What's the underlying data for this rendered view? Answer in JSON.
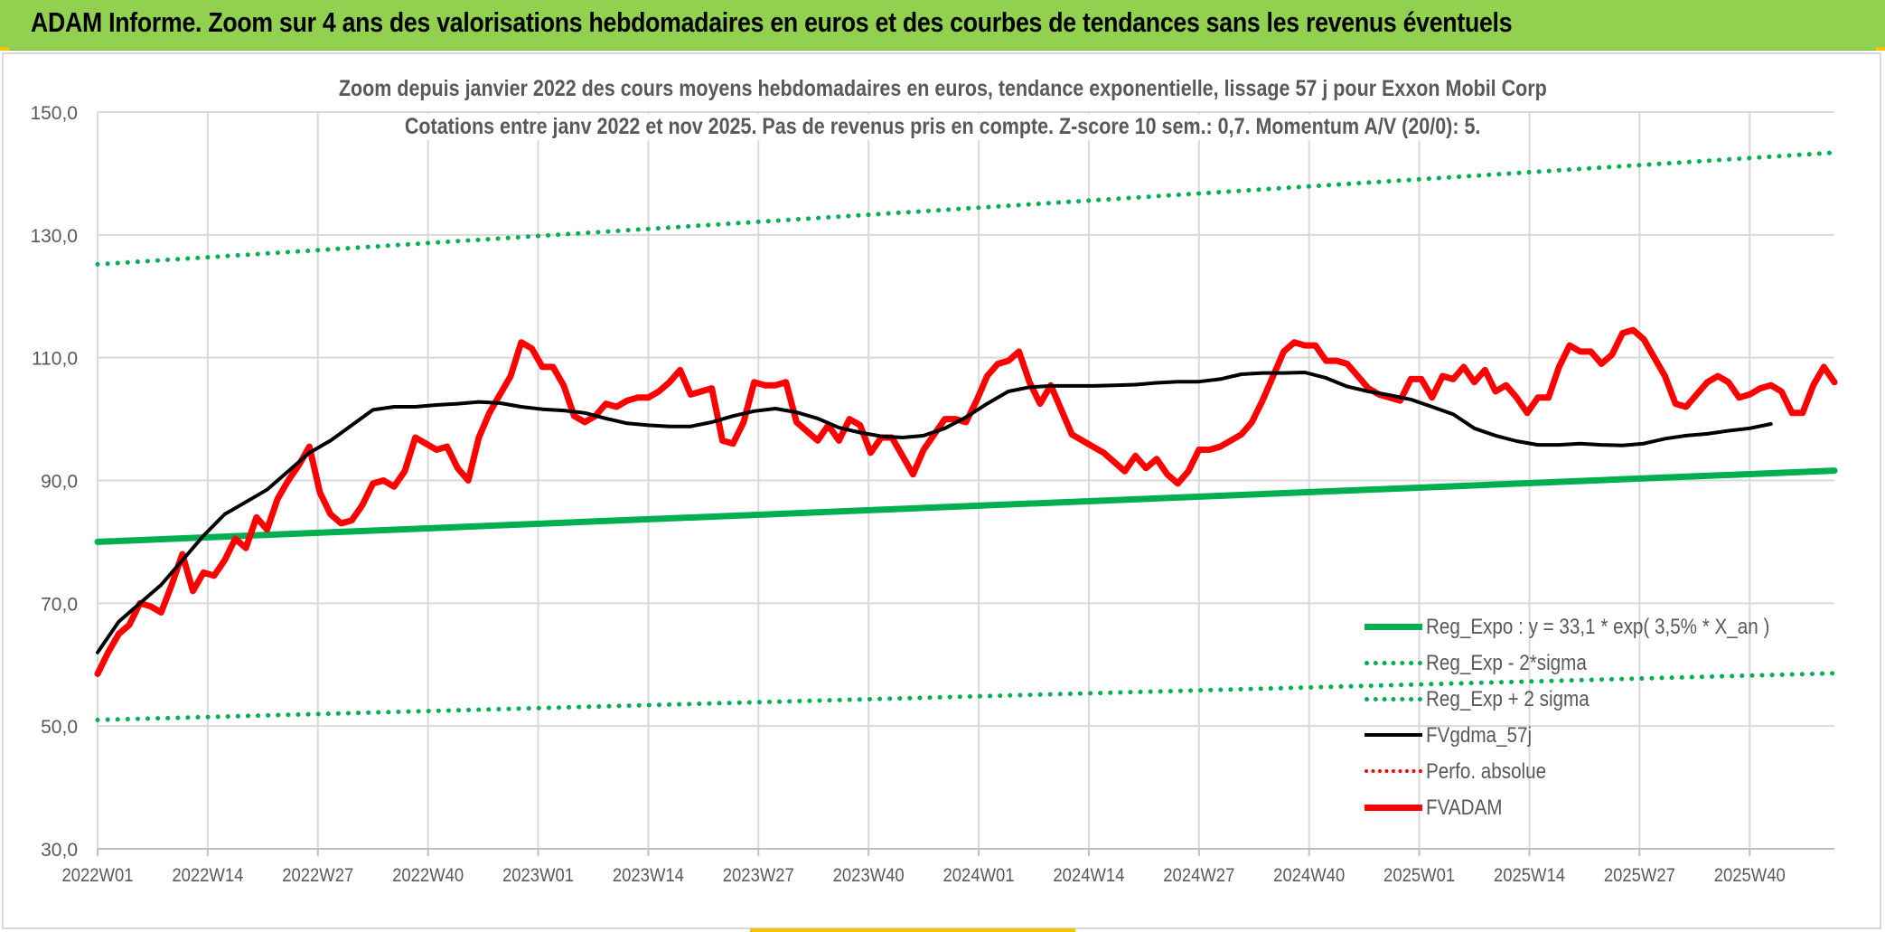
{
  "banner": {
    "title": "ADAM Informe. Zoom sur 4 ans des valorisations hebdomadaires en euros et des courbes de tendances sans les revenus éventuels"
  },
  "colors": {
    "banner_bg": "#92d050",
    "trend_green": "#00b050",
    "smooth_black": "#000000",
    "price_red": "#ff0000",
    "grid": "#d9d9d9",
    "text": "#595959"
  },
  "chart_data": {
    "type": "line",
    "title": "Zoom depuis janvier 2022 des cours moyens hebdomadaires en euros, tendance exponentielle, lissage 57 j pour Exxon Mobil Corp",
    "subtitle": "Cotations entre janv 2022 et nov 2025. Pas de revenus pris en compte. Z-score 10 sem.: 0,7. Momentum A/V (20/0): 5.",
    "y_ticks": [
      "30,0",
      "50,0",
      "70,0",
      "90,0",
      "110,0",
      "130,0",
      "150,0"
    ],
    "ylim": [
      30,
      150
    ],
    "x_ticks": [
      "2022W01",
      "2022W14",
      "2022W27",
      "2022W40",
      "2023W01",
      "2023W14",
      "2023W27",
      "2023W40",
      "2024W01",
      "2024W14",
      "2024W27",
      "2024W40",
      "2025W01",
      "2025W14",
      "2025W27",
      "2025W40"
    ],
    "x_tick_weeks": [
      0,
      13,
      26,
      39,
      52,
      65,
      78,
      91,
      104,
      117,
      130,
      143,
      156,
      169,
      182,
      195
    ],
    "x_range_weeks": [
      0,
      205
    ],
    "grid": true,
    "legend_position": "bottom-right",
    "series": [
      {
        "name": "Reg_Expo : y = 33,1 * exp( 3,5% *  X_an )",
        "style": "solid-thick",
        "color": "#00b050",
        "points": [
          [
            0,
            80.0
          ],
          [
            205,
            91.6
          ]
        ]
      },
      {
        "name": "Reg_Exp - 2*sigma",
        "style": "dotted",
        "color": "#00b050",
        "points": [
          [
            0,
            51.0
          ],
          [
            205,
            58.6
          ]
        ]
      },
      {
        "name": "Reg_Exp + 2 sigma",
        "style": "dotted",
        "color": "#00b050",
        "points": [
          [
            0,
            125.2
          ],
          [
            205,
            143.4
          ]
        ]
      },
      {
        "name": "FVgdma_57j",
        "style": "solid",
        "color": "#000000",
        "points": [
          [
            0,
            62
          ],
          [
            4,
            67
          ],
          [
            8,
            70
          ],
          [
            12,
            73
          ],
          [
            16,
            77
          ],
          [
            20,
            81
          ],
          [
            24,
            84.5
          ],
          [
            28,
            86.5
          ],
          [
            32,
            88.5
          ],
          [
            36,
            91.5
          ],
          [
            40,
            94.5
          ],
          [
            44,
            96.5
          ],
          [
            48,
            99
          ],
          [
            52,
            101.5
          ],
          [
            56,
            102
          ],
          [
            60,
            102
          ],
          [
            64,
            102.3
          ],
          [
            68,
            102.5
          ],
          [
            72,
            102.8
          ],
          [
            76,
            102.6
          ],
          [
            80,
            102
          ],
          [
            84,
            101.6
          ],
          [
            88,
            101.4
          ],
          [
            92,
            101
          ],
          [
            96,
            100.1
          ],
          [
            100,
            99.3
          ],
          [
            104,
            99
          ],
          [
            108,
            98.8
          ],
          [
            112,
            98.8
          ],
          [
            116,
            99.5
          ],
          [
            120,
            100.5
          ],
          [
            124,
            101.3
          ],
          [
            128,
            101.7
          ],
          [
            132,
            101.1
          ],
          [
            136,
            100.1
          ],
          [
            140,
            98.6
          ],
          [
            144,
            97.8
          ],
          [
            148,
            97.2
          ],
          [
            152,
            97
          ],
          [
            156,
            97.3
          ],
          [
            160,
            98.5
          ],
          [
            164,
            100.3
          ],
          [
            168,
            102.5
          ],
          [
            172,
            104.5
          ],
          [
            176,
            105.2
          ],
          [
            180,
            105.4
          ],
          [
            184,
            105.4
          ],
          [
            188,
            105.4
          ],
          [
            192,
            105.5
          ],
          [
            196,
            105.6
          ],
          [
            200,
            105.9
          ],
          [
            204,
            106.1
          ],
          [
            208,
            106.1
          ],
          [
            212,
            106.5
          ],
          [
            216,
            107.3
          ],
          [
            220,
            107.5
          ],
          [
            224,
            107.5
          ],
          [
            228,
            107.6
          ],
          [
            232,
            106.7
          ],
          [
            236,
            105.3
          ],
          [
            240,
            104.5
          ],
          [
            244,
            103.9
          ],
          [
            248,
            103.2
          ],
          [
            252,
            102
          ],
          [
            256,
            100.8
          ],
          [
            260,
            98.5
          ],
          [
            264,
            97.3
          ],
          [
            268,
            96.4
          ],
          [
            272,
            95.8
          ],
          [
            276,
            95.8
          ],
          [
            280,
            96
          ],
          [
            284,
            95.8
          ],
          [
            288,
            95.7
          ],
          [
            292,
            96
          ],
          [
            296,
            96.8
          ],
          [
            300,
            97.3
          ],
          [
            304,
            97.6
          ],
          [
            308,
            98.1
          ],
          [
            312,
            98.5
          ],
          [
            316,
            99.2
          ]
        ]
      },
      {
        "name": "Perfo. absolue",
        "style": "dotted",
        "color": "#ff0000",
        "points": []
      },
      {
        "name": "FVADAM",
        "style": "solid-thick",
        "color": "#ff0000",
        "points": [
          [
            0,
            58.5
          ],
          [
            2,
            62
          ],
          [
            4,
            65
          ],
          [
            6,
            66.5
          ],
          [
            8,
            70
          ],
          [
            10,
            69.5
          ],
          [
            12,
            68.5
          ],
          [
            14,
            73
          ],
          [
            16,
            78
          ],
          [
            18,
            72
          ],
          [
            20,
            75
          ],
          [
            22,
            74.5
          ],
          [
            24,
            77
          ],
          [
            26,
            80.5
          ],
          [
            28,
            79
          ],
          [
            30,
            84
          ],
          [
            32,
            82
          ],
          [
            34,
            87
          ],
          [
            36,
            90
          ],
          [
            38,
            92.5
          ],
          [
            40,
            95.5
          ],
          [
            42,
            88
          ],
          [
            44,
            84.5
          ],
          [
            46,
            83
          ],
          [
            48,
            83.5
          ],
          [
            50,
            86
          ],
          [
            52,
            89.5
          ],
          [
            54,
            90
          ],
          [
            56,
            89
          ],
          [
            58,
            91.5
          ],
          [
            60,
            97
          ],
          [
            62,
            96
          ],
          [
            64,
            95
          ],
          [
            66,
            95.5
          ],
          [
            68,
            92
          ],
          [
            70,
            90
          ],
          [
            72,
            97
          ],
          [
            74,
            101
          ],
          [
            76,
            104
          ],
          [
            78,
            107
          ],
          [
            80,
            112.5
          ],
          [
            82,
            111.5
          ],
          [
            84,
            108.5
          ],
          [
            86,
            108.5
          ],
          [
            88,
            105.5
          ],
          [
            90,
            100.5
          ],
          [
            92,
            99.5
          ],
          [
            94,
            100.5
          ],
          [
            96,
            102.5
          ],
          [
            98,
            102
          ],
          [
            100,
            103
          ],
          [
            102,
            103.5
          ],
          [
            104,
            103.5
          ],
          [
            106,
            104.5
          ],
          [
            108,
            106
          ],
          [
            110,
            108
          ],
          [
            112,
            104
          ],
          [
            114,
            104.5
          ],
          [
            116,
            105
          ],
          [
            118,
            96.5
          ],
          [
            120,
            96
          ],
          [
            122,
            99.5
          ],
          [
            124,
            106
          ],
          [
            126,
            105.5
          ],
          [
            128,
            105.5
          ],
          [
            130,
            106
          ],
          [
            132,
            99.5
          ],
          [
            134,
            98
          ],
          [
            136,
            96.5
          ],
          [
            138,
            99
          ],
          [
            140,
            96.5
          ],
          [
            142,
            100
          ],
          [
            144,
            99
          ],
          [
            146,
            94.5
          ],
          [
            148,
            97
          ],
          [
            150,
            97
          ],
          [
            152,
            94
          ],
          [
            154,
            91
          ],
          [
            156,
            95
          ],
          [
            158,
            97.5
          ],
          [
            160,
            100
          ],
          [
            162,
            100
          ],
          [
            164,
            99.5
          ],
          [
            166,
            103
          ],
          [
            168,
            107
          ],
          [
            170,
            109
          ],
          [
            172,
            109.5
          ],
          [
            174,
            111
          ],
          [
            176,
            106
          ],
          [
            178,
            102.5
          ],
          [
            180,
            105.5
          ],
          [
            182,
            101.5
          ],
          [
            184,
            97.5
          ],
          [
            186,
            96.5
          ],
          [
            188,
            95.5
          ],
          [
            190,
            94.5
          ],
          [
            192,
            93
          ],
          [
            194,
            91.5
          ],
          [
            196,
            94
          ],
          [
            198,
            92
          ],
          [
            200,
            93.5
          ],
          [
            202,
            91
          ],
          [
            204,
            89.5
          ],
          [
            206,
            91.5
          ],
          [
            208,
            95
          ],
          [
            210,
            95
          ],
          [
            212,
            95.5
          ],
          [
            214,
            96.5
          ],
          [
            216,
            97.5
          ],
          [
            218,
            99.5
          ],
          [
            220,
            103
          ],
          [
            222,
            107
          ],
          [
            224,
            111
          ],
          [
            226,
            112.5
          ],
          [
            228,
            112
          ],
          [
            230,
            112
          ],
          [
            232,
            109.5
          ],
          [
            234,
            109.5
          ],
          [
            236,
            109
          ],
          [
            238,
            107
          ],
          [
            240,
            105
          ],
          [
            242,
            104
          ],
          [
            244,
            103.5
          ],
          [
            246,
            103
          ],
          [
            248,
            106.5
          ],
          [
            250,
            106.5
          ],
          [
            252,
            103.5
          ],
          [
            254,
            107
          ],
          [
            256,
            106.5
          ],
          [
            258,
            108.5
          ],
          [
            260,
            106
          ],
          [
            262,
            108
          ],
          [
            264,
            104.5
          ],
          [
            266,
            105.5
          ],
          [
            268,
            103.5
          ],
          [
            270,
            101
          ],
          [
            272,
            103.5
          ],
          [
            274,
            103.5
          ],
          [
            276,
            108.5
          ],
          [
            278,
            112
          ],
          [
            280,
            111
          ],
          [
            282,
            111
          ],
          [
            284,
            109
          ],
          [
            286,
            110.5
          ],
          [
            288,
            114
          ],
          [
            290,
            114.5
          ],
          [
            292,
            113
          ],
          [
            294,
            110
          ],
          [
            296,
            107
          ],
          [
            298,
            102.5
          ],
          [
            300,
            102
          ],
          [
            302,
            104
          ],
          [
            304,
            106
          ],
          [
            306,
            107
          ],
          [
            308,
            106
          ],
          [
            310,
            103.5
          ],
          [
            312,
            104
          ],
          [
            314,
            105
          ],
          [
            316,
            105.5
          ],
          [
            318,
            104.5
          ],
          [
            320,
            101
          ],
          [
            322,
            101
          ],
          [
            324,
            105.5
          ],
          [
            326,
            108.5
          ],
          [
            328,
            106
          ]
        ]
      }
    ]
  },
  "legend": {
    "items": [
      "Reg_Expo : y = 33,1 * exp( 3,5% *  X_an )",
      "Reg_Exp - 2*sigma",
      "Reg_Exp + 2 sigma",
      "FVgdma_57j",
      "Perfo. absolue",
      "FVADAM"
    ]
  }
}
